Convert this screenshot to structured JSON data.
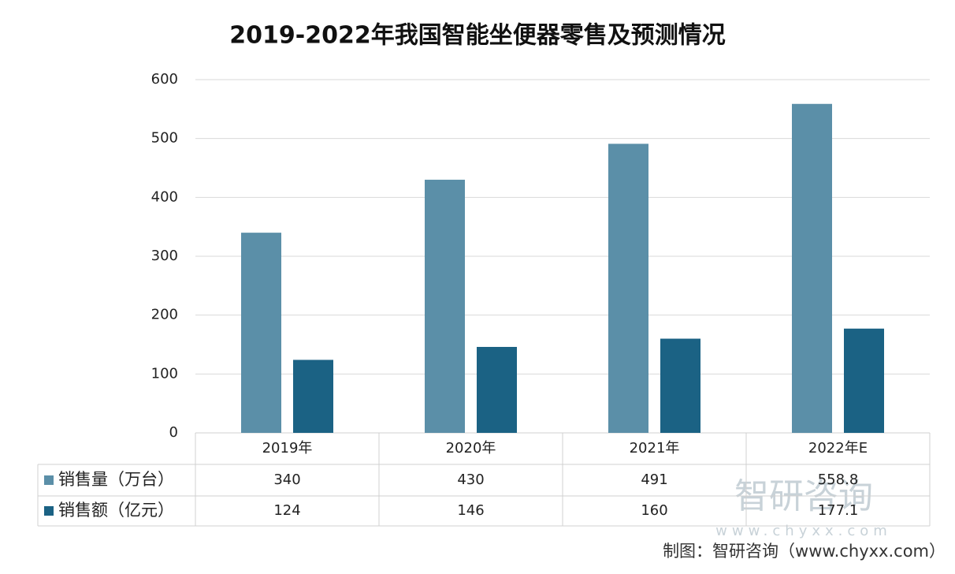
{
  "chart_data": {
    "type": "bar",
    "title": "2019-2022年我国智能坐便器零售及预测情况",
    "categories": [
      "2019年",
      "2020年",
      "2021年",
      "2022年E"
    ],
    "series": [
      {
        "name": "销售量（万台）",
        "color": "#5b8fa8",
        "values": [
          340,
          430,
          491,
          558.8
        ]
      },
      {
        "name": "销售额（亿元）",
        "color": "#1b6284",
        "values": [
          124,
          146,
          160,
          177.1
        ]
      }
    ],
    "ylim": [
      0,
      600
    ],
    "yticks": [
      0,
      100,
      200,
      300,
      400,
      500,
      600
    ],
    "grid": true,
    "watermark": [
      "智研咨询",
      "www.chyxx.com"
    ],
    "source": "制图：智研咨询（www.chyxx.com）"
  }
}
